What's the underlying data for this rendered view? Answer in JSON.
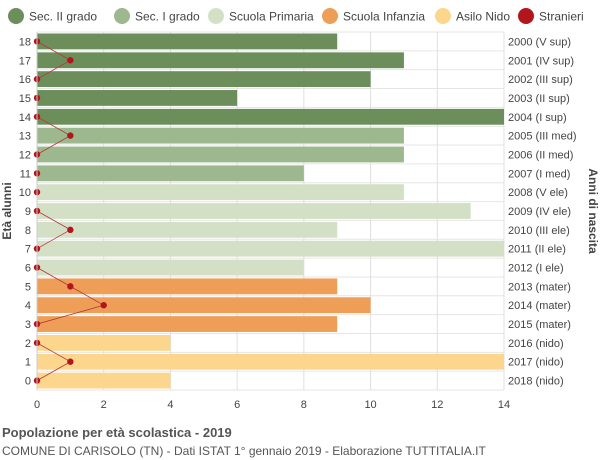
{
  "chart_data": {
    "type": "bar",
    "orientation": "horizontal",
    "title": "Popolazione per età scolastica - 2019",
    "subtitle": "COMUNE DI CARISOLO (TN) - Dati ISTAT 1° gennaio 2019 - Elaborazione TUTTITALIA.IT",
    "ylabel_left": "Età alunni",
    "ylabel_right": "Anni di nascita",
    "xlim": [
      0,
      14
    ],
    "x_ticks": [
      0,
      2,
      4,
      6,
      8,
      10,
      12,
      14
    ],
    "grid": true,
    "legend_position": "top",
    "legend": [
      {
        "name": "Sec. II grado",
        "color": "#6b8e5a"
      },
      {
        "name": "Sec. I grado",
        "color": "#9db88f"
      },
      {
        "name": "Scuola Primaria",
        "color": "#d4e0c6"
      },
      {
        "name": "Scuola Infanzia",
        "color": "#ee9e57"
      },
      {
        "name": "Asilo Nido",
        "color": "#fdd68e"
      },
      {
        "name": "Stranieri",
        "color": "#b2151b"
      }
    ],
    "rows": [
      {
        "age": "18",
        "birth": "2000 (V sup)",
        "value": 9,
        "stranieri": 0,
        "group": 0
      },
      {
        "age": "17",
        "birth": "2001 (IV sup)",
        "value": 11,
        "stranieri": 1,
        "group": 0
      },
      {
        "age": "16",
        "birth": "2002 (III sup)",
        "value": 10,
        "stranieri": 0,
        "group": 0
      },
      {
        "age": "15",
        "birth": "2003 (II sup)",
        "value": 6,
        "stranieri": 0,
        "group": 0
      },
      {
        "age": "14",
        "birth": "2004 (I sup)",
        "value": 14,
        "stranieri": 0,
        "group": 0
      },
      {
        "age": "13",
        "birth": "2005 (III med)",
        "value": 11,
        "stranieri": 1,
        "group": 1
      },
      {
        "age": "12",
        "birth": "2006 (II med)",
        "value": 11,
        "stranieri": 0,
        "group": 1
      },
      {
        "age": "11",
        "birth": "2007 (I med)",
        "value": 8,
        "stranieri": 0,
        "group": 1
      },
      {
        "age": "10",
        "birth": "2008 (V ele)",
        "value": 11,
        "stranieri": 0,
        "group": 2
      },
      {
        "age": "9",
        "birth": "2009 (IV ele)",
        "value": 13,
        "stranieri": 0,
        "group": 2
      },
      {
        "age": "8",
        "birth": "2010 (III ele)",
        "value": 9,
        "stranieri": 1,
        "group": 2
      },
      {
        "age": "7",
        "birth": "2011 (II ele)",
        "value": 14,
        "stranieri": 0,
        "group": 2
      },
      {
        "age": "6",
        "birth": "2012 (I ele)",
        "value": 8,
        "stranieri": 0,
        "group": 2
      },
      {
        "age": "5",
        "birth": "2013 (mater)",
        "value": 9,
        "stranieri": 1,
        "group": 3
      },
      {
        "age": "4",
        "birth": "2014 (mater)",
        "value": 10,
        "stranieri": 2,
        "group": 3
      },
      {
        "age": "3",
        "birth": "2015 (mater)",
        "value": 9,
        "stranieri": 0,
        "group": 3
      },
      {
        "age": "2",
        "birth": "2016 (nido)",
        "value": 4,
        "stranieri": 0,
        "group": 4
      },
      {
        "age": "1",
        "birth": "2017 (nido)",
        "value": 14,
        "stranieri": 1,
        "group": 4
      },
      {
        "age": "0",
        "birth": "2018 (nido)",
        "value": 4,
        "stranieri": 0,
        "group": 4
      }
    ]
  }
}
